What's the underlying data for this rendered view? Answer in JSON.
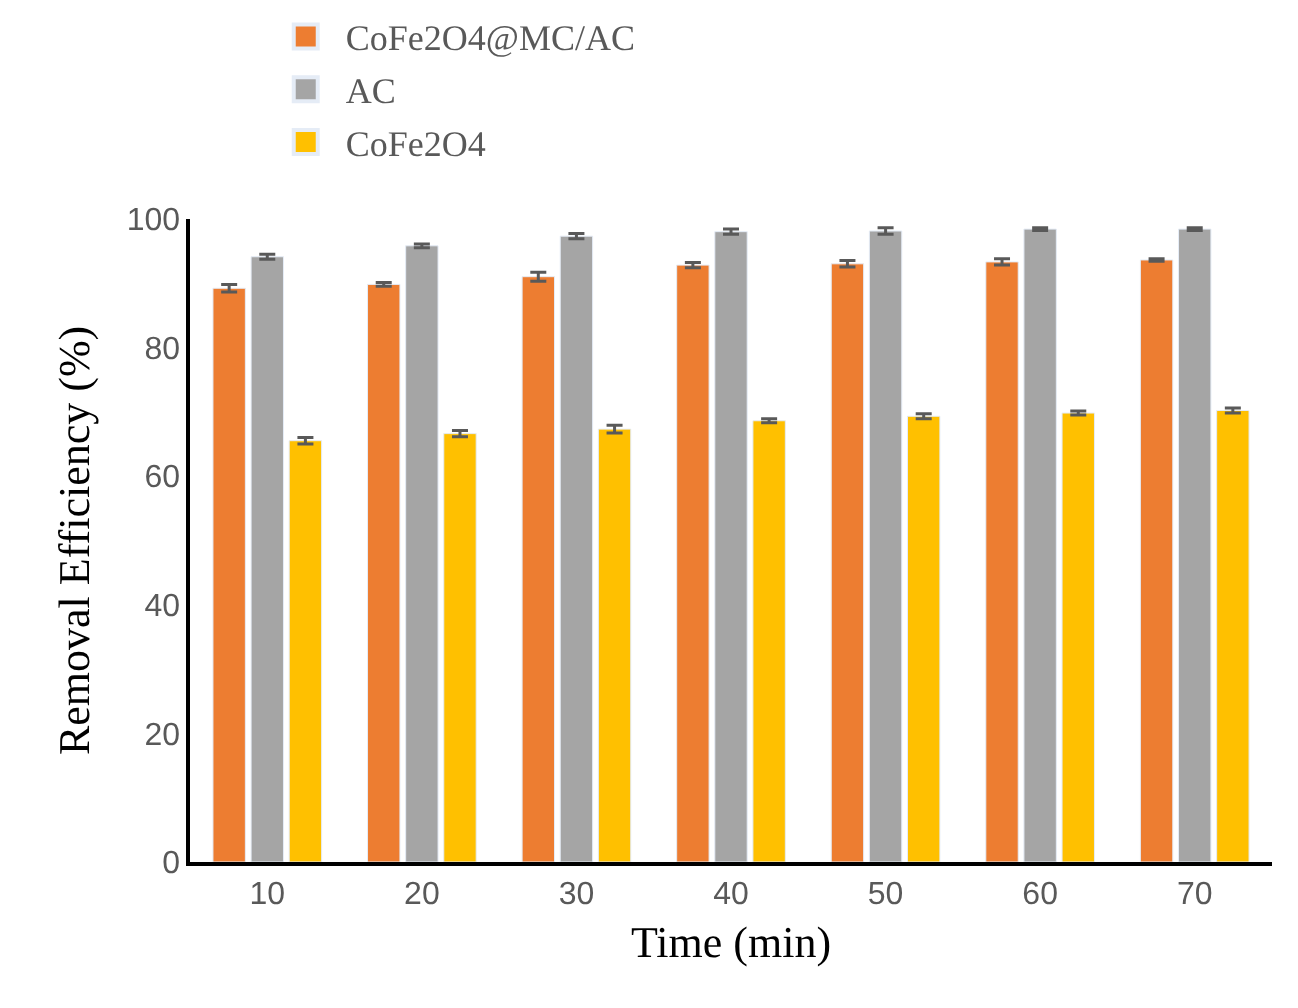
{
  "chart_data": {
    "type": "bar",
    "xlabel": "Time (min)",
    "ylabel": "Removal Efficiency (%)",
    "categories": [
      "10",
      "20",
      "30",
      "40",
      "50",
      "60",
      "70"
    ],
    "series": [
      {
        "name": "CoFe2O4@MC/AC",
        "color": "#ed7d31",
        "values": [
          89.2,
          89.8,
          91.0,
          92.8,
          93.0,
          93.3,
          93.6
        ],
        "errors": [
          0.6,
          0.3,
          0.7,
          0.4,
          0.5,
          0.5,
          0.2
        ]
      },
      {
        "name": "AC",
        "color": "#a5a5a5",
        "values": [
          94.1,
          95.8,
          97.3,
          98.0,
          98.1,
          98.4,
          98.4
        ],
        "errors": [
          0.4,
          0.3,
          0.4,
          0.4,
          0.5,
          0.2,
          0.2
        ]
      },
      {
        "name": "CoFe2O4",
        "color": "#ffc000",
        "values": [
          65.5,
          66.6,
          67.3,
          68.6,
          69.3,
          69.8,
          70.2
        ],
        "errors": [
          0.5,
          0.5,
          0.6,
          0.3,
          0.4,
          0.3,
          0.4
        ]
      }
    ],
    "ylim": [
      0,
      100
    ],
    "yticks": [
      0,
      20,
      40,
      60,
      80,
      100
    ],
    "legend": "top left"
  }
}
